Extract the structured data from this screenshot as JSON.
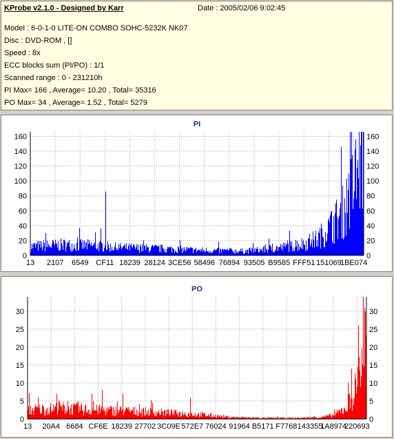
{
  "header": {
    "title": "KProbe v2.1.0 - Designed by Karr",
    "date": "Date : 2005/02/06 9:02:45",
    "lines": [
      "Model : 6-0-1-0 LITE-ON COMBO SOHC-5232K NK07",
      "Disc : DVD-ROM ,  []",
      "Speed : 8x",
      "ECC blocks sum (PI/PO) : 1/1",
      "Scanned range : 0 - 231210h",
      "PI Max= 166 , Average= 10.20 , Total= 35316",
      "PO Max= 34 , Average= 1.52 , Total= 5279"
    ]
  },
  "chart_data": [
    {
      "type": "bar",
      "title": "PI",
      "color": "#0000ff",
      "ylim": [
        0,
        166
      ],
      "yticks": [
        0,
        20,
        40,
        60,
        80,
        100,
        120,
        140,
        160
      ],
      "xticks": [
        "13",
        "2107",
        "6549",
        "CF11",
        "18239",
        "28124",
        "3CE56",
        "58496",
        "76894",
        "93505",
        "B9585",
        "FFF51",
        "151069",
        "1BE074"
      ],
      "x_range": [
        "0",
        "231210"
      ],
      "grid": true,
      "profile": [
        [
          0.0,
          12
        ],
        [
          0.05,
          13
        ],
        [
          0.1,
          14
        ],
        [
          0.2,
          13
        ],
        [
          0.25,
          11
        ],
        [
          0.3,
          10
        ],
        [
          0.4,
          9
        ],
        [
          0.5,
          7
        ],
        [
          0.6,
          6
        ],
        [
          0.65,
          6
        ],
        [
          0.7,
          8
        ],
        [
          0.78,
          12
        ],
        [
          0.82,
          16
        ],
        [
          0.86,
          22
        ],
        [
          0.9,
          38
        ],
        [
          0.94,
          60
        ],
        [
          0.97,
          95
        ],
        [
          1.0,
          150
        ]
      ],
      "spikes": [
        [
          0.045,
          30
        ],
        [
          0.225,
          86
        ],
        [
          0.77,
          20
        ],
        [
          0.815,
          22
        ],
        [
          0.955,
          110
        ],
        [
          0.975,
          140
        ],
        [
          0.99,
          148
        ],
        [
          0.997,
          166
        ]
      ]
    },
    {
      "type": "bar",
      "title": "PO",
      "color": "#ff0000",
      "ylim": [
        0,
        34
      ],
      "yticks": [
        0,
        5,
        10,
        15,
        20,
        25,
        30
      ],
      "xticks": [
        "13",
        "20A4",
        "6684",
        "CF6E",
        "18239",
        "27702",
        "3C09E",
        "572E7",
        "76024",
        "91964",
        "B5171",
        "F7768",
        "143355",
        "1A8974",
        "220693"
      ],
      "x_range": [
        "0",
        "231210"
      ],
      "grid": true,
      "profile": [
        [
          0.0,
          2.5
        ],
        [
          0.1,
          3
        ],
        [
          0.2,
          2.5
        ],
        [
          0.3,
          2.2
        ],
        [
          0.4,
          1.8
        ],
        [
          0.5,
          1.3
        ],
        [
          0.6,
          0.5
        ],
        [
          0.7,
          0.3
        ],
        [
          0.8,
          0.3
        ],
        [
          0.86,
          0.5
        ],
        [
          0.9,
          1.0
        ],
        [
          0.94,
          3.0
        ],
        [
          0.97,
          9
        ],
        [
          1.0,
          24
        ]
      ],
      "spikes": [
        [
          0.03,
          6
        ],
        [
          0.085,
          7
        ],
        [
          0.19,
          7
        ],
        [
          0.22,
          8
        ],
        [
          0.28,
          7
        ],
        [
          0.48,
          6
        ],
        [
          0.955,
          14
        ],
        [
          0.975,
          26
        ],
        [
          0.99,
          34
        ],
        [
          0.995,
          30
        ]
      ]
    }
  ]
}
